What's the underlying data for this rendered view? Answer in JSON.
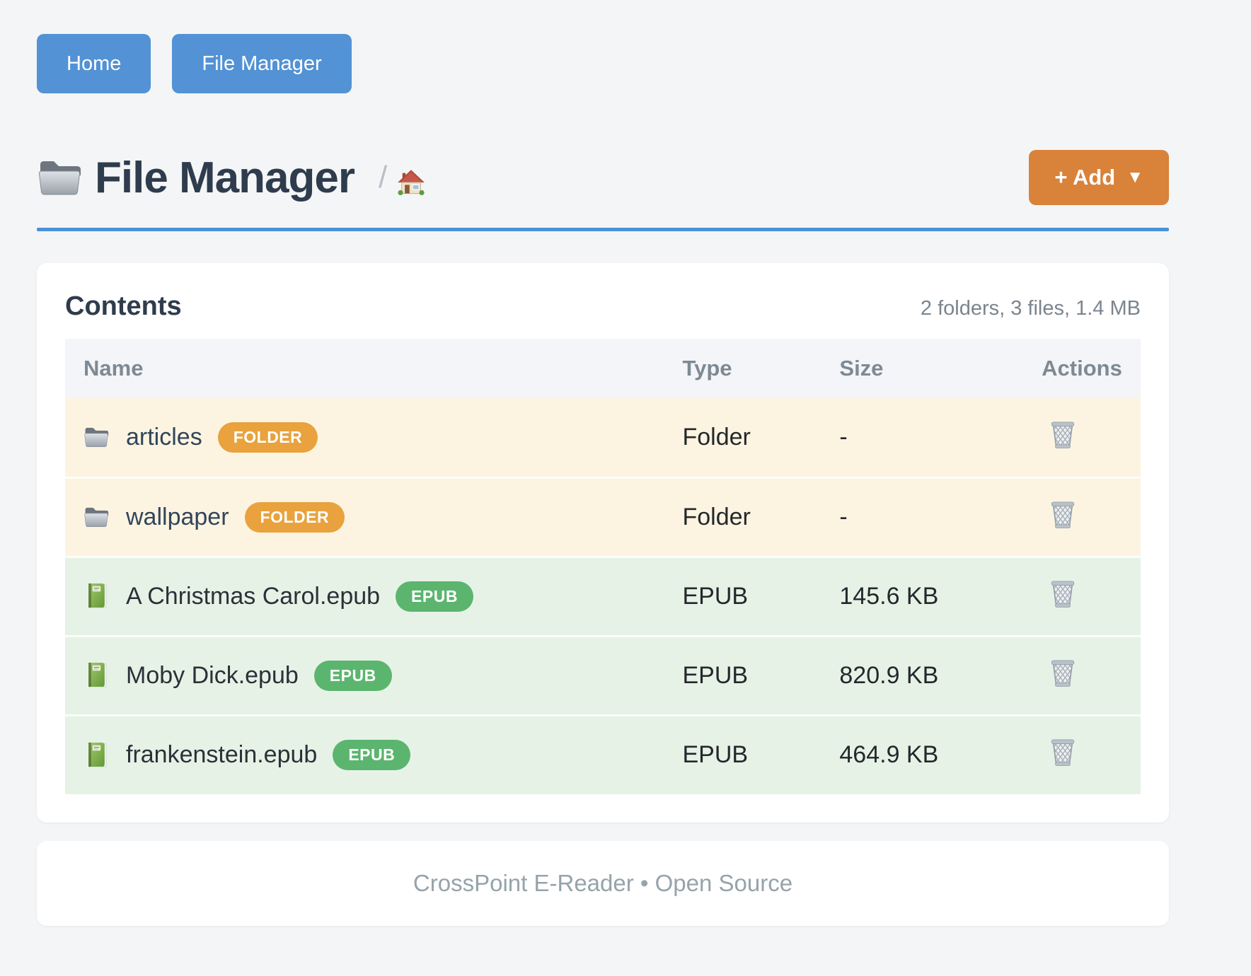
{
  "colors": {
    "nav_button": "#5292d5",
    "accent_underline": "#4a90d8",
    "add_button": "#d9823a",
    "badge_folder": "#e9a23d",
    "badge_epub": "#5bb56e",
    "row_folder_bg": "#fcf4e1",
    "row_epub_bg": "#e7f2e7",
    "header_row_bg": "#f3f5f8",
    "page_bg": "#f4f5f6"
  },
  "nav": {
    "home_label": "Home",
    "file_manager_label": "File Manager"
  },
  "header": {
    "title": "File Manager",
    "breadcrumb_separator": "/",
    "add_button_label": "+ Add",
    "add_button_caret": "▼"
  },
  "contents": {
    "heading": "Contents",
    "summary": "2 folders, 3 files, 1.4 MB",
    "columns": [
      "Name",
      "Type",
      "Size",
      "Actions"
    ],
    "rows": [
      {
        "kind": "folder",
        "name": "articles",
        "badge": "FOLDER",
        "type": "Folder",
        "size": "-"
      },
      {
        "kind": "folder",
        "name": "wallpaper",
        "badge": "FOLDER",
        "type": "Folder",
        "size": "-"
      },
      {
        "kind": "epub",
        "name": "A Christmas Carol.epub",
        "badge": "EPUB",
        "type": "EPUB",
        "size": "145.6 KB"
      },
      {
        "kind": "epub",
        "name": "Moby Dick.epub",
        "badge": "EPUB",
        "type": "EPUB",
        "size": "820.9 KB"
      },
      {
        "kind": "epub",
        "name": "frankenstein.epub",
        "badge": "EPUB",
        "type": "EPUB",
        "size": "464.9 KB"
      }
    ]
  },
  "footer": {
    "text": "CrossPoint E-Reader • Open Source"
  }
}
